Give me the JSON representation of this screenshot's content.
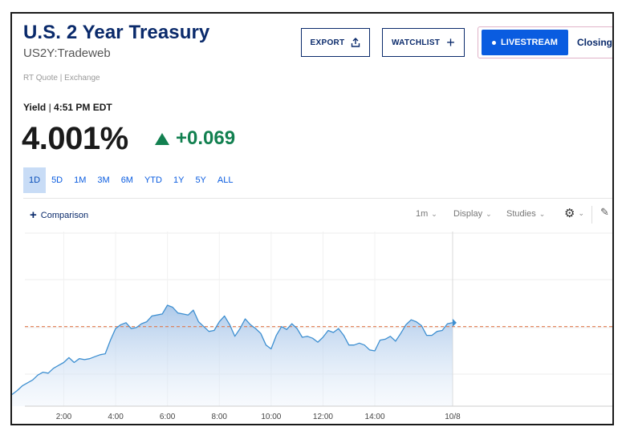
{
  "header": {
    "title": "U.S. 2 Year Treasury",
    "symbol": "US2Y:Tradeweb",
    "rt_quote": "RT Quote | Exchange"
  },
  "actions": {
    "export_label": "EXPORT",
    "watchlist_label": "WATCHLIST",
    "livestream_label": "LIVESTREAM",
    "closing_label": "Closing"
  },
  "quote": {
    "yield_label": "Yield",
    "time": "4:51 PM EDT",
    "price": "4.001%",
    "change": "+0.069",
    "direction": "up"
  },
  "range_tabs": [
    {
      "label": "1D",
      "active": true
    },
    {
      "label": "5D",
      "active": false
    },
    {
      "label": "1M",
      "active": false
    },
    {
      "label": "3M",
      "active": false
    },
    {
      "label": "6M",
      "active": false
    },
    {
      "label": "YTD",
      "active": false
    },
    {
      "label": "1Y",
      "active": false
    },
    {
      "label": "5Y",
      "active": false
    },
    {
      "label": "ALL",
      "active": false
    }
  ],
  "chart_controls": {
    "comparison_label": "Comparison",
    "interval": "1m",
    "display_label": "Display",
    "studies_label": "Studies"
  },
  "colors": {
    "brand_navy": "#0a2a6b",
    "accent_blue": "#0a5ce0",
    "positive_green": "#128050",
    "line": "#3d8fd1",
    "previous_close_line": "#e07a4f"
  },
  "chart_data": {
    "type": "area",
    "title": "",
    "xlabel": "",
    "ylabel": "",
    "x_tick_labels": [
      "2:00",
      "4:00",
      "6:00",
      "8:00",
      "10:00",
      "12:00",
      "14:00",
      "10/8"
    ],
    "x_ticks_hours": [
      2,
      4,
      6,
      8,
      10,
      12,
      14,
      17
    ],
    "x_range_hours": [
      0,
      24
    ],
    "y_range": [
      3.85,
      4.03
    ],
    "previous_close": 3.932,
    "grid": true,
    "legend": "none",
    "series": [
      {
        "x_hours": [
          0,
          0.2,
          0.4,
          0.6,
          0.8,
          1,
          1.2,
          1.4,
          1.6,
          1.8,
          2,
          2.2,
          2.4,
          2.6,
          2.8,
          3,
          3.2,
          3.4,
          3.6,
          3.8,
          4,
          4.2,
          4.4,
          4.6,
          4.8,
          5,
          5.2,
          5.4,
          5.6,
          5.8,
          6,
          6.2,
          6.4,
          6.6,
          6.8,
          7,
          7.2,
          7.4,
          7.6,
          7.8,
          8,
          8.2,
          8.4,
          8.6,
          8.8,
          9,
          9.2,
          9.4,
          9.6,
          9.8,
          10,
          10.2,
          10.4,
          10.6,
          10.8,
          11,
          11.2,
          11.4,
          11.6,
          11.8,
          12,
          12.2,
          12.4,
          12.6,
          12.8,
          13,
          13.2,
          13.4,
          13.6,
          13.8,
          14,
          14.2,
          14.4,
          14.6,
          14.8,
          15,
          15.2,
          15.4,
          15.6,
          15.8,
          16,
          16.2,
          16.4,
          16.6,
          16.8,
          17
        ],
        "values": [
          3.862,
          3.866,
          3.871,
          3.874,
          3.877,
          3.882,
          3.885,
          3.884,
          3.889,
          3.892,
          3.895,
          3.9,
          3.895,
          3.899,
          3.898,
          3.899,
          3.901,
          3.903,
          3.904,
          3.918,
          3.93,
          3.934,
          3.936,
          3.93,
          3.931,
          3.935,
          3.937,
          3.943,
          3.944,
          3.945,
          3.954,
          3.952,
          3.946,
          3.945,
          3.944,
          3.949,
          3.937,
          3.932,
          3.927,
          3.928,
          3.937,
          3.943,
          3.934,
          3.922,
          3.93,
          3.94,
          3.934,
          3.93,
          3.925,
          3.913,
          3.909,
          3.923,
          3.932,
          3.929,
          3.935,
          3.93,
          3.921,
          3.922,
          3.92,
          3.916,
          3.921,
          3.928,
          3.926,
          3.93,
          3.923,
          3.913,
          3.913,
          3.915,
          3.913,
          3.908,
          3.907,
          3.918,
          3.919,
          3.922,
          3.917,
          3.925,
          3.934,
          3.939,
          3.937,
          3.933,
          3.923,
          3.923,
          3.927,
          3.928,
          3.935,
          3.936
        ]
      }
    ]
  }
}
